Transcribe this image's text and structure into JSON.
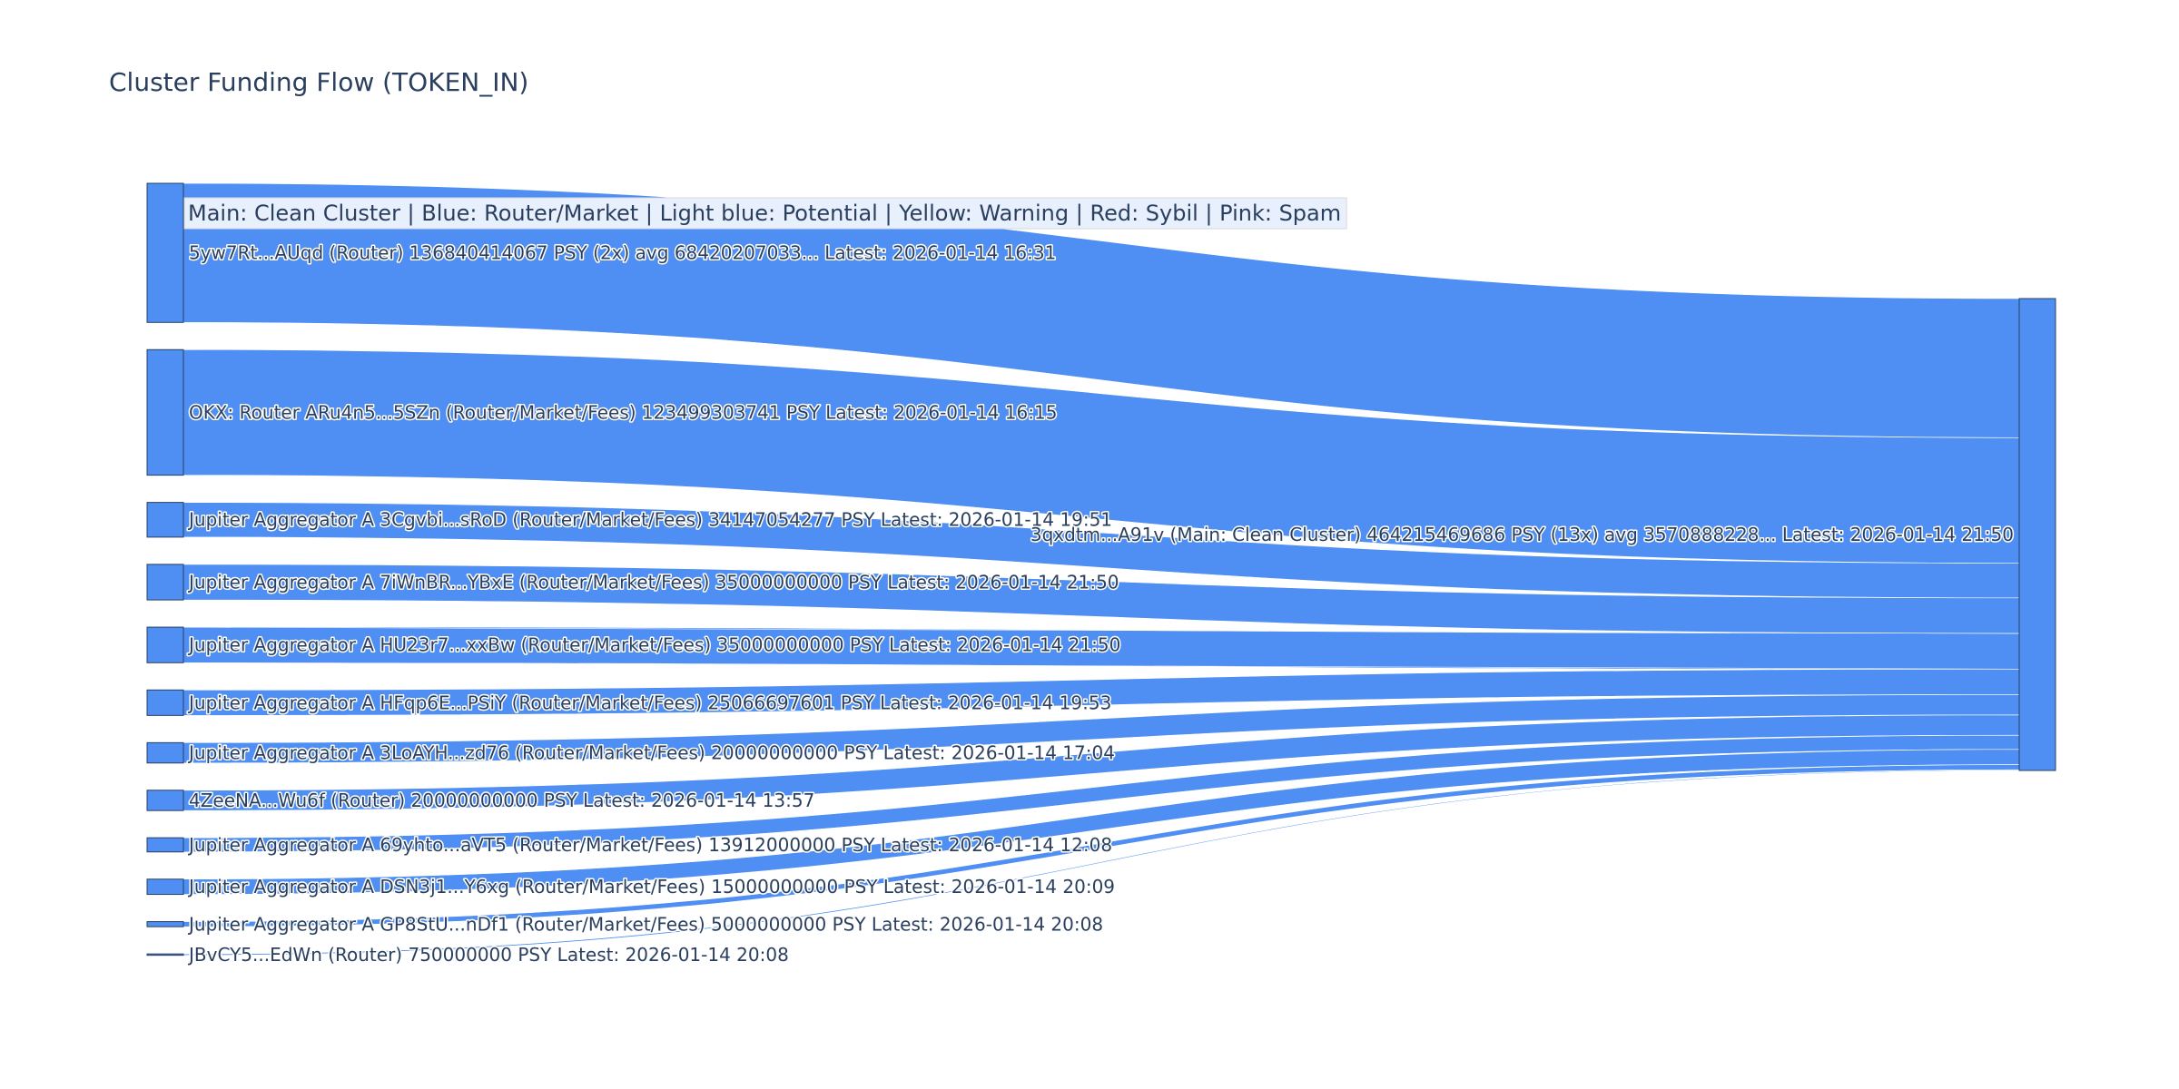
{
  "colors": {
    "link": "#4f8ff3",
    "link_stroke": "#ffffff",
    "node": "#4f8ff3",
    "node_stroke": "#2a3f5f",
    "title_text": "#2a3f5f",
    "legend_bg": "#e8f0fd"
  },
  "chart_data": {
    "type": "sankey",
    "title": "Cluster Funding Flow (TOKEN_IN)",
    "legend_note": "Main: Clean Cluster  |  Blue: Router/Market | Light blue: Potential | Yellow: Warning | Red: Sybil | Pink: Spam",
    "target": {
      "label": "3qxdtm...A91v (Main: Clean Cluster) 464215469686 PSY (13x) avg 3570888228... Latest: 2026-01-14 21:50",
      "value": 464215469686
    },
    "sources": [
      {
        "label": "5yw7Rt...AUqd (Router) 136840414067 PSY (2x) avg 68420207033... Latest: 2026-01-14 16:31",
        "value": 136840414067
      },
      {
        "label": "OKX: Router ARu4n5...5SZn (Router/Market/Fees) 123499303741 PSY Latest: 2026-01-14 16:15",
        "value": 123499303741
      },
      {
        "label": "Jupiter Aggregator A 3Cgvbi...sRoD (Router/Market/Fees) 34147054277 PSY Latest: 2026-01-14 19:51",
        "value": 34147054277
      },
      {
        "label": "Jupiter Aggregator A 7iWnBR...YBxE (Router/Market/Fees) 35000000000 PSY Latest: 2026-01-14 21:50",
        "value": 35000000000
      },
      {
        "label": "Jupiter Aggregator A HU23r7...xxBw (Router/Market/Fees) 35000000000 PSY Latest: 2026-01-14 21:50",
        "value": 35000000000
      },
      {
        "label": "Jupiter Aggregator A HFqp6E...PSiY (Router/Market/Fees) 25066697601 PSY Latest: 2026-01-14 19:53",
        "value": 25066697601
      },
      {
        "label": "Jupiter Aggregator A 3LoAYH...zd76 (Router/Market/Fees) 20000000000 PSY Latest: 2026-01-14 17:04",
        "value": 20000000000
      },
      {
        "label": "4ZeeNA...Wu6f (Router) 20000000000 PSY Latest: 2026-01-14 13:57",
        "value": 20000000000
      },
      {
        "label": "Jupiter Aggregator A 69yhto...aVT5 (Router/Market/Fees) 13912000000 PSY Latest: 2026-01-14 12:08",
        "value": 13912000000
      },
      {
        "label": "Jupiter Aggregator A DSN3j1...Y6xg (Router/Market/Fees) 15000000000 PSY Latest: 2026-01-14 20:09",
        "value": 15000000000
      },
      {
        "label": "Jupiter Aggregator A GP8StU...nDf1 (Router/Market/Fees) 5000000000 PSY Latest: 2026-01-14 20:08",
        "value": 5000000000
      },
      {
        "label": "JBvCY5...EdWn (Router) 750000000 PSY Latest: 2026-01-14 20:08",
        "value": 750000000
      }
    ]
  }
}
